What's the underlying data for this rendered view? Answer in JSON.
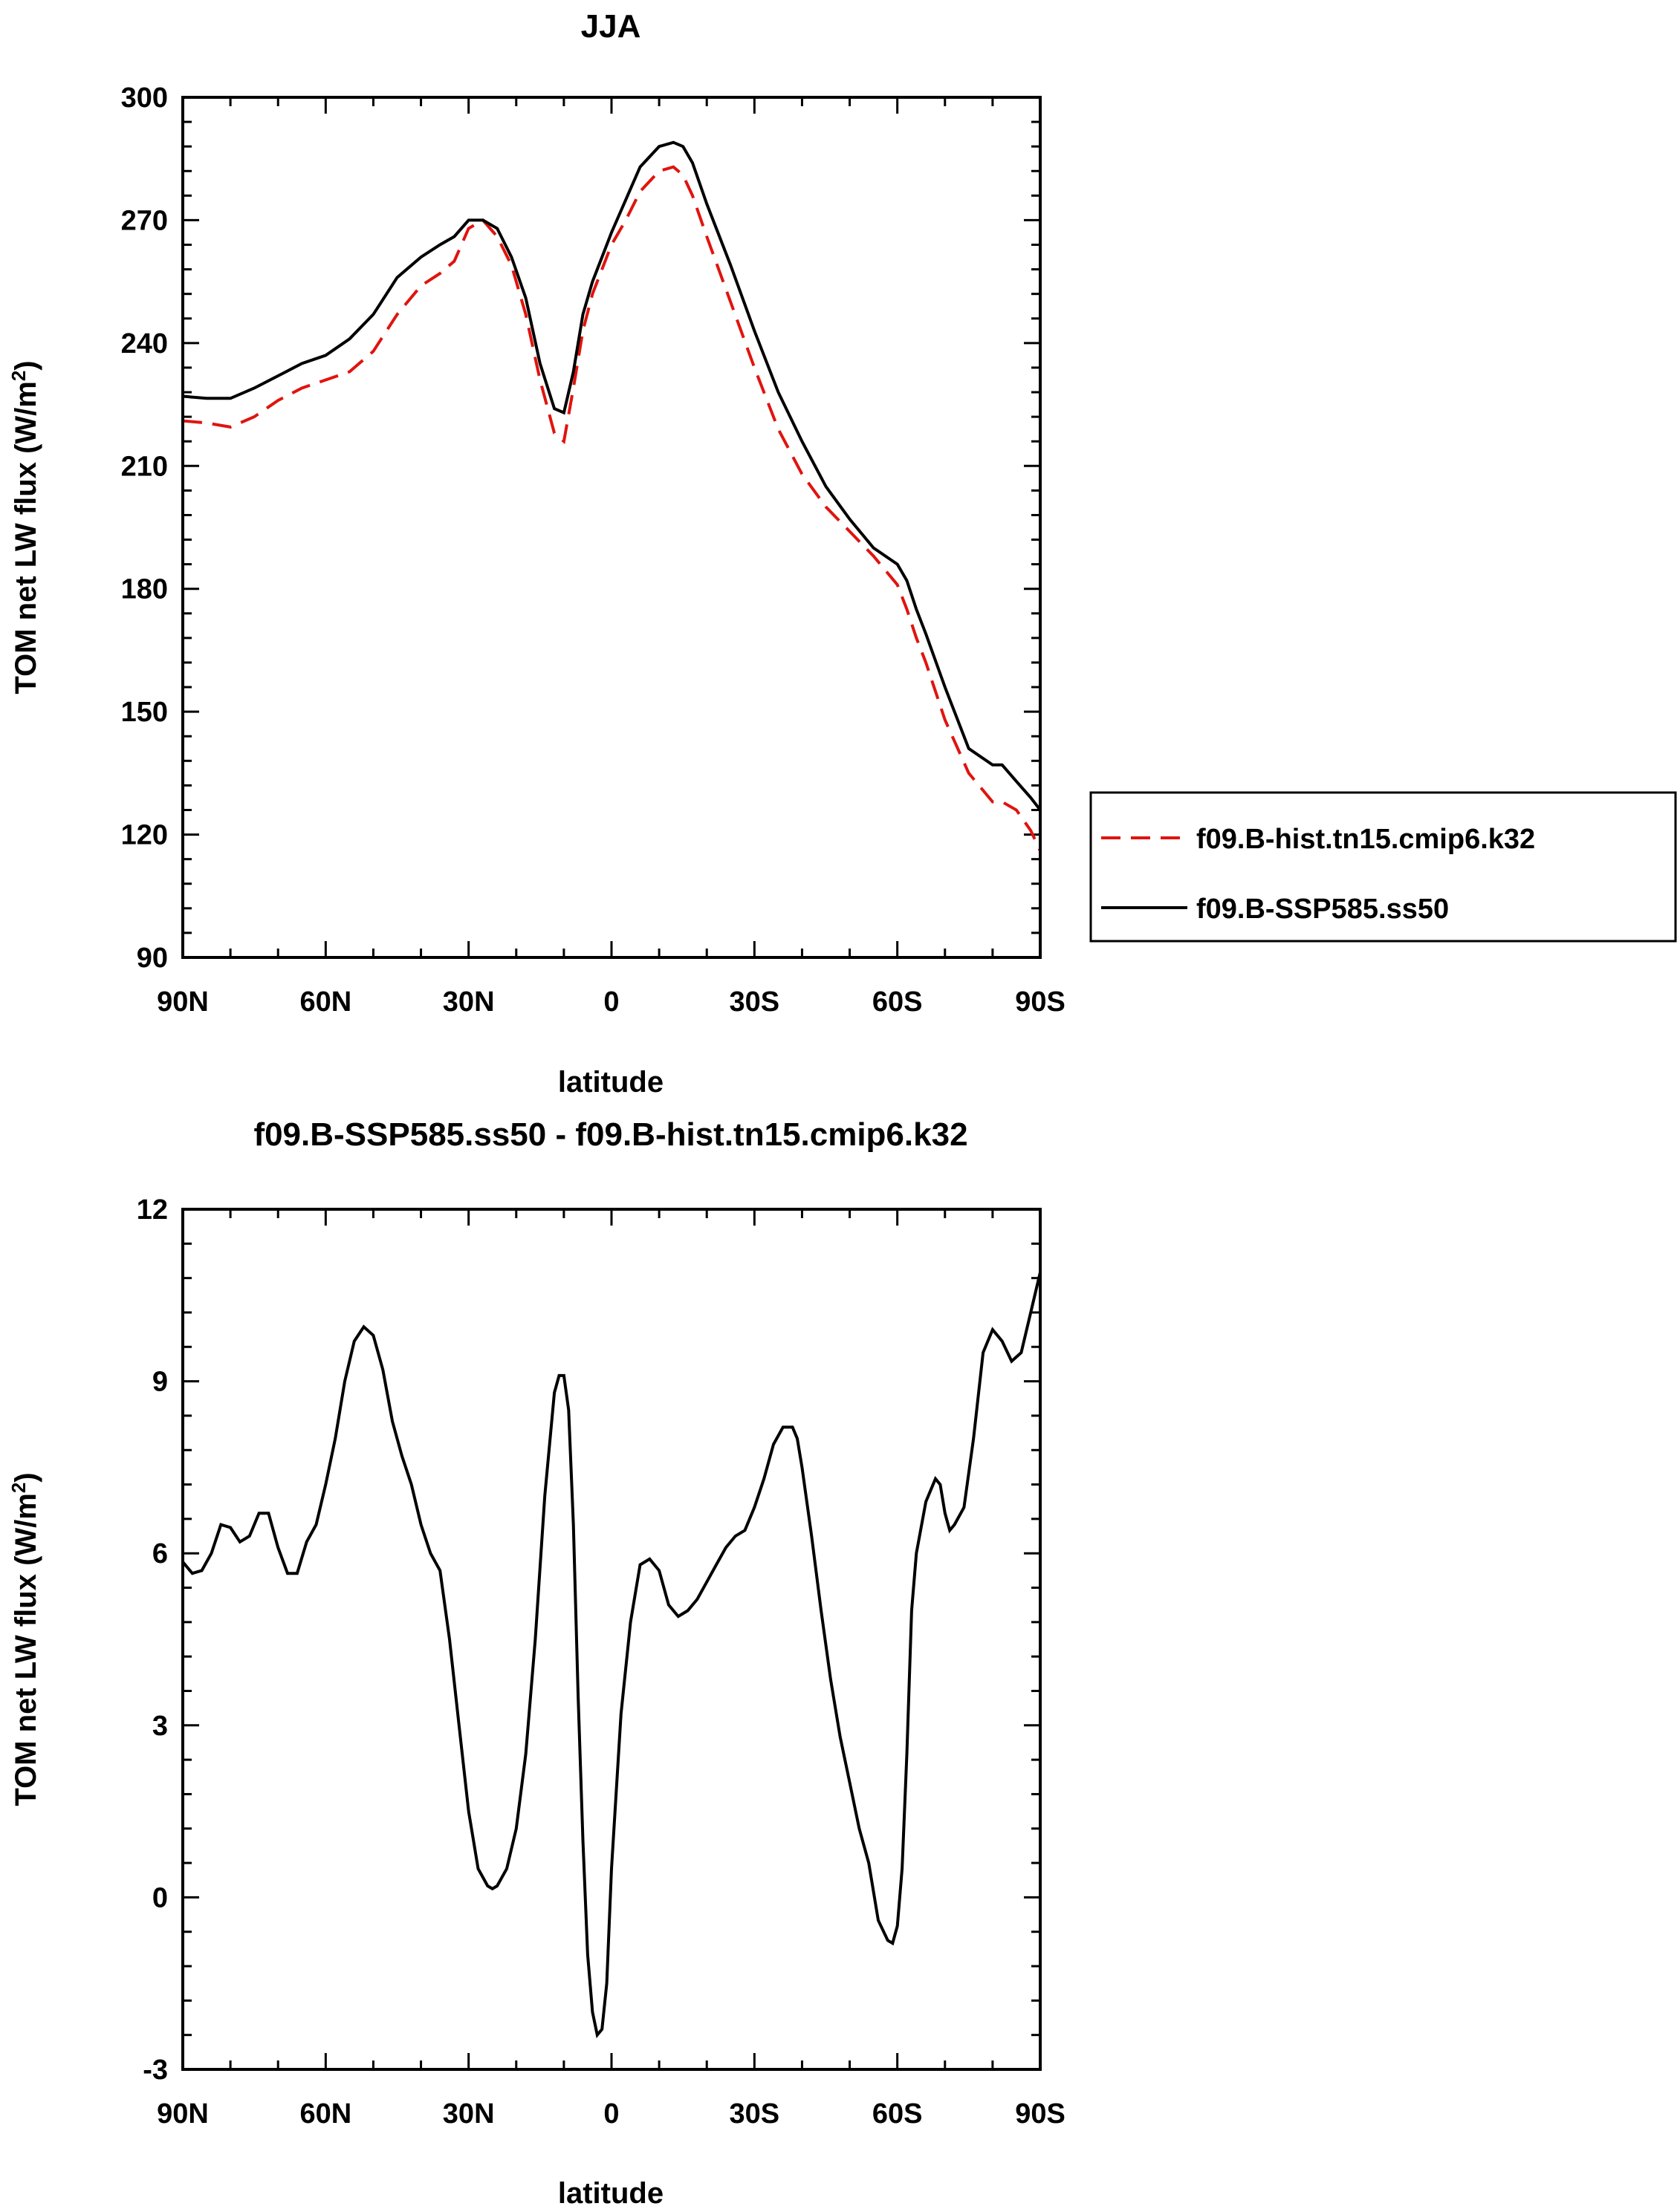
{
  "chart_data": [
    {
      "type": "line",
      "title": "JJA",
      "xlabel": "latitude",
      "ylabel": "TOM net LW flux (W/m",
      "ylabel_sup": "2",
      "ylabel_end": ")",
      "xlim": [
        90,
        -90
      ],
      "ylim": [
        90,
        300
      ],
      "x_ticks": [
        90,
        60,
        30,
        0,
        -30,
        -60,
        -90
      ],
      "x_tick_labels": [
        "90N",
        "60N",
        "30N",
        "0",
        "30S",
        "60S",
        "90S"
      ],
      "y_ticks": [
        90,
        120,
        150,
        180,
        210,
        240,
        270,
        300
      ],
      "y_tick_labels": [
        "90",
        "120",
        "150",
        "180",
        "210",
        "240",
        "270",
        "300"
      ],
      "legend_position": "right",
      "series": [
        {
          "name": "f09.B-hist.tn15.cmip6.k32",
          "color": "#e0140e",
          "style": "dashed",
          "x": [
            90,
            85,
            80,
            75,
            70,
            65,
            60,
            55,
            50,
            45,
            40,
            36,
            33,
            30,
            27,
            24,
            21,
            18,
            15,
            12,
            10,
            8,
            6,
            4,
            2,
            0,
            -3,
            -6,
            -10,
            -13,
            -15,
            -17,
            -20,
            -25,
            -30,
            -35,
            -40,
            -45,
            -50,
            -55,
            -60,
            -62,
            -64,
            -66,
            -70,
            -75,
            -80,
            -82,
            -85,
            -88,
            -90
          ],
          "y": [
            221,
            220.5,
            219.5,
            222,
            226,
            229,
            231,
            233,
            238,
            247,
            254,
            257,
            260,
            268,
            270,
            266,
            259,
            247,
            231,
            218,
            216,
            229,
            243,
            252,
            258,
            264,
            270,
            277,
            282,
            283,
            281,
            276,
            266,
            250,
            234,
            219,
            208,
            200,
            194,
            188,
            181,
            175,
            168,
            162,
            148,
            135,
            128,
            128,
            126,
            121,
            116
          ]
        },
        {
          "name": "f09.B-SSP585.ss50",
          "color": "#000000",
          "style": "solid",
          "x": [
            90,
            85,
            80,
            75,
            70,
            65,
            60,
            55,
            50,
            45,
            40,
            36,
            33,
            30,
            27,
            24,
            21,
            18,
            15,
            12,
            10,
            8,
            6,
            4,
            2,
            0,
            -3,
            -6,
            -10,
            -13,
            -15,
            -17,
            -20,
            -25,
            -30,
            -35,
            -40,
            -45,
            -50,
            -55,
            -60,
            -62,
            -64,
            -66,
            -70,
            -75,
            -80,
            -82,
            -85,
            -88,
            -90
          ],
          "y": [
            227,
            226.5,
            226.5,
            229,
            232,
            235,
            237,
            241,
            247,
            256,
            261,
            264,
            266,
            270,
            270,
            268,
            261,
            251,
            235,
            224,
            223,
            233,
            247,
            255,
            261,
            267,
            275,
            283,
            288,
            289,
            288,
            284,
            274,
            259,
            243,
            228,
            216,
            205,
            197,
            190,
            186,
            182,
            175,
            169,
            156,
            141,
            137,
            137,
            133,
            129,
            126
          ]
        }
      ]
    },
    {
      "type": "line",
      "title": "f09.B-SSP585.ss50 - f09.B-hist.tn15.cmip6.k32",
      "xlabel": "latitude",
      "ylabel": "TOM net LW flux (W/m",
      "ylabel_sup": "2",
      "ylabel_end": ")",
      "xlim": [
        90,
        -90
      ],
      "ylim": [
        -3,
        12
      ],
      "x_ticks": [
        90,
        60,
        30,
        0,
        -30,
        -60,
        -90
      ],
      "x_tick_labels": [
        "90N",
        "60N",
        "30N",
        "0",
        "30S",
        "60S",
        "90S"
      ],
      "y_ticks": [
        -3,
        0,
        3,
        6,
        9,
        12
      ],
      "y_tick_labels": [
        "-3",
        "0",
        "3",
        "6",
        "9",
        "12"
      ],
      "series": [
        {
          "name": "f09.B-SSP585.ss50 - f09.B-hist.tn15.cmip6.k32",
          "color": "#000000",
          "style": "solid",
          "x": [
            90,
            88,
            86,
            84,
            82,
            80,
            78,
            76,
            74,
            72,
            70,
            68,
            66,
            64,
            62,
            60,
            58,
            56,
            54,
            52,
            50,
            48,
            46,
            44,
            42,
            40,
            38,
            36,
            34,
            32,
            30,
            28,
            26,
            25,
            24,
            22,
            20,
            18,
            16,
            14,
            12,
            11,
            10,
            9,
            8,
            7,
            6,
            5,
            4,
            3,
            2,
            1,
            0,
            -2,
            -4,
            -6,
            -8,
            -10,
            -12,
            -14,
            -16,
            -18,
            -20,
            -22,
            -24,
            -26,
            -28,
            -30,
            -32,
            -34,
            -36,
            -38,
            -39,
            -40,
            -42,
            -44,
            -46,
            -48,
            -50,
            -52,
            -54,
            -56,
            -58,
            -59,
            -60,
            -61,
            -62,
            -63,
            -64,
            -66,
            -68,
            -69,
            -70,
            -71,
            -72,
            -74,
            -76,
            -78,
            -80,
            -81,
            -82,
            -84,
            -86,
            -88,
            -90
          ],
          "y": [
            5.85,
            5.65,
            5.7,
            6.0,
            6.5,
            6.45,
            6.2,
            6.3,
            6.7,
            6.7,
            6.1,
            5.65,
            5.65,
            6.2,
            6.5,
            7.2,
            8.0,
            9.0,
            9.7,
            9.95,
            9.8,
            9.2,
            8.3,
            7.7,
            7.2,
            6.5,
            6.0,
            5.7,
            4.5,
            3.0,
            1.5,
            0.5,
            0.2,
            0.15,
            0.2,
            0.5,
            1.2,
            2.5,
            4.5,
            7.0,
            8.8,
            9.1,
            9.1,
            8.5,
            6.5,
            3.5,
            1.0,
            -1.0,
            -2.0,
            -2.4,
            -2.3,
            -1.5,
            0.5,
            3.2,
            4.8,
            5.8,
            5.9,
            5.7,
            5.1,
            4.9,
            5.0,
            5.2,
            5.5,
            5.8,
            6.1,
            6.3,
            6.4,
            6.8,
            7.3,
            7.9,
            8.2,
            8.2,
            8.0,
            7.5,
            6.3,
            5.0,
            3.8,
            2.8,
            2.0,
            1.2,
            0.6,
            -0.4,
            -0.75,
            -0.8,
            -0.5,
            0.5,
            2.5,
            5.0,
            6.0,
            6.9,
            7.3,
            7.2,
            6.7,
            6.4,
            6.5,
            6.8,
            8.0,
            9.5,
            9.9,
            9.8,
            9.7,
            9.35,
            9.5,
            10.2,
            10.9
          ]
        }
      ]
    }
  ]
}
